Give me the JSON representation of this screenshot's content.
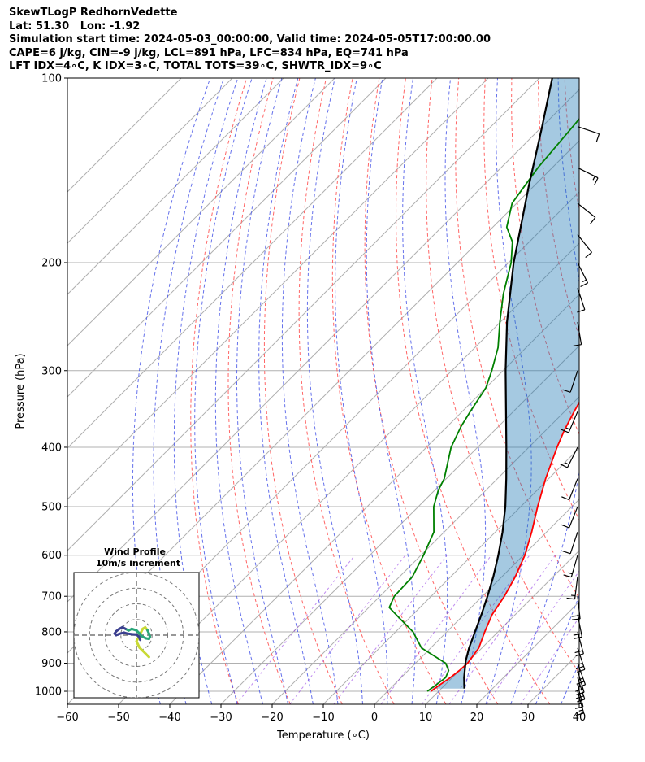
{
  "header": {
    "line1": "SkewTLogP RedhornVedette",
    "line2": "Lat: 51.30   Lon: -1.92",
    "line3": "Simulation start time: 2024-05-03_00:00:00, Valid time: 2024-05-05T17:00:00.00",
    "line4": "CAPE=6 j/kg, CIN=-9 j/kg, LCL=891 hPa, LFC=834 hPa, EQ=741 hPa",
    "line5": "LFT IDX=4∘C, K IDX=3∘C, TOTAL TOTS=39∘C, SHWTR_IDX=9∘C"
  },
  "chart_data": {
    "type": "skewt",
    "xlabel": "Temperature (∘C)",
    "ylabel": "Pressure (hPa)",
    "xlim": [
      -60,
      40
    ],
    "ylim": [
      1050,
      100
    ],
    "x_ticks": [
      -60,
      -50,
      -40,
      -30,
      -20,
      -10,
      0,
      10,
      20,
      30,
      40
    ],
    "x_tick_labels": [
      "−60",
      "−50",
      "−40",
      "−30",
      "−20",
      "−10",
      "0",
      "10",
      "20",
      "30",
      "40"
    ],
    "p_ticks": [
      1000,
      900,
      800,
      700,
      600,
      500,
      400,
      300,
      200,
      100
    ],
    "grid": true,
    "series": [
      {
        "key": "temperature",
        "color": "#ff0000",
        "points": [
          [
            1000,
            8.5
          ],
          [
            975,
            9.0
          ],
          [
            950,
            9.6
          ],
          [
            925,
            10.0
          ],
          [
            900,
            10.2
          ],
          [
            850,
            9.4
          ],
          [
            800,
            7.4
          ],
          [
            750,
            5.5
          ],
          [
            700,
            4.3
          ],
          [
            650,
            2.6
          ],
          [
            600,
            0.3
          ],
          [
            550,
            -2.9
          ],
          [
            500,
            -6.7
          ],
          [
            450,
            -10.6
          ],
          [
            400,
            -14.5
          ],
          [
            375,
            -16.4
          ],
          [
            350,
            -18.1
          ],
          [
            325,
            -19.8
          ],
          [
            300,
            -23.0
          ],
          [
            275,
            -26.6
          ],
          [
            250,
            -30.6
          ],
          [
            225,
            -33.9
          ],
          [
            200,
            -37.5
          ],
          [
            180,
            -40.5
          ],
          [
            160,
            -44.5
          ],
          [
            140,
            -49.5
          ],
          [
            120,
            -57.0
          ],
          [
            100,
            -67.0
          ]
        ]
      },
      {
        "key": "dewpoint",
        "color": "#008000",
        "points": [
          [
            1000,
            7.8
          ],
          [
            975,
            8.3
          ],
          [
            950,
            8.7
          ],
          [
            925,
            7.9
          ],
          [
            900,
            5.9
          ],
          [
            850,
            -1.8
          ],
          [
            800,
            -6.6
          ],
          [
            760,
            -11.9
          ],
          [
            730,
            -16.0
          ],
          [
            700,
            -17.2
          ],
          [
            650,
            -17.5
          ],
          [
            600,
            -19.5
          ],
          [
            550,
            -22.0
          ],
          [
            500,
            -27.0
          ],
          [
            470,
            -29.3
          ],
          [
            450,
            -30.4
          ],
          [
            400,
            -35.2
          ],
          [
            370,
            -37.3
          ],
          [
            350,
            -38.4
          ],
          [
            320,
            -40.0
          ],
          [
            300,
            -42.2
          ],
          [
            275,
            -45.5
          ],
          [
            250,
            -50.1
          ],
          [
            225,
            -54.9
          ],
          [
            200,
            -59.5
          ],
          [
            185,
            -63.3
          ],
          [
            175,
            -67.3
          ],
          [
            160,
            -70.9
          ],
          [
            140,
            -72.8
          ],
          [
            120,
            -74.0
          ],
          [
            100,
            -75.5
          ]
        ]
      },
      {
        "key": "parcel",
        "color": "#000000",
        "points": [
          [
            990,
            14.5
          ],
          [
            950,
            12.3
          ],
          [
            920,
            10.8
          ],
          [
            891,
            9.3
          ],
          [
            850,
            7.5
          ],
          [
            800,
            5.5
          ],
          [
            750,
            3.4
          ],
          [
            700,
            1.0
          ],
          [
            650,
            -1.7
          ],
          [
            600,
            -4.9
          ],
          [
            550,
            -8.6
          ],
          [
            500,
            -13.0
          ],
          [
            450,
            -18.3
          ],
          [
            400,
            -24.4
          ],
          [
            350,
            -31.4
          ],
          [
            300,
            -39.5
          ],
          [
            250,
            -48.7
          ],
          [
            200,
            -59.0
          ],
          [
            150,
            -71.0
          ],
          [
            120,
            -80.0
          ],
          [
            100,
            -87.5
          ]
        ]
      }
    ],
    "cape_fill": {
      "color": "#1f77b4",
      "alpha": 0.4
    },
    "wind_barbs": [
      {
        "p": 1000,
        "u": -2,
        "v": 7
      },
      {
        "p": 975,
        "u": -2,
        "v": 8
      },
      {
        "p": 950,
        "u": -3,
        "v": 9
      },
      {
        "p": 925,
        "u": -3,
        "v": 10
      },
      {
        "p": 900,
        "u": -4,
        "v": 11
      },
      {
        "p": 850,
        "u": -4,
        "v": 12
      },
      {
        "p": 800,
        "u": -3,
        "v": 11
      },
      {
        "p": 750,
        "u": -2,
        "v": 10
      },
      {
        "p": 700,
        "u": -1,
        "v": 9
      },
      {
        "p": 650,
        "u": 1,
        "v": 8
      },
      {
        "p": 600,
        "u": 2,
        "v": 7
      },
      {
        "p": 550,
        "u": 2,
        "v": 6
      },
      {
        "p": 500,
        "u": 2,
        "v": 5
      },
      {
        "p": 450,
        "u": 2,
        "v": 5
      },
      {
        "p": 400,
        "u": 3,
        "v": 6
      },
      {
        "p": 350,
        "u": 3,
        "v": 7
      },
      {
        "p": 300,
        "u": 2,
        "v": 6
      },
      {
        "p": 250,
        "u": -1,
        "v": 6
      },
      {
        "p": 220,
        "u": -2,
        "v": 6
      },
      {
        "p": 200,
        "u": -3,
        "v": 6
      },
      {
        "p": 180,
        "u": -4,
        "v": 5
      },
      {
        "p": 160,
        "u": -5,
        "v": 4
      },
      {
        "p": 140,
        "u": -6,
        "v": 3
      },
      {
        "p": 120,
        "u": -6,
        "v": 2
      }
    ],
    "hodograph": {
      "title_line1": "Wind Profile",
      "title_line2": "10m/s increment",
      "ring_step": 10,
      "rings": 4,
      "range": 20,
      "points": [
        [
          4,
          -7
        ],
        [
          3,
          -6
        ],
        [
          2,
          -5
        ],
        [
          1,
          -4
        ],
        [
          0.5,
          -3
        ],
        [
          0,
          -2
        ],
        [
          0.5,
          -1
        ],
        [
          1,
          0
        ],
        [
          1.5,
          1
        ],
        [
          2,
          2
        ],
        [
          2.8,
          2.5
        ],
        [
          3.5,
          1.6
        ],
        [
          4,
          0.5
        ],
        [
          4.3,
          -0.5
        ],
        [
          4,
          -1.2
        ],
        [
          3,
          -1
        ],
        [
          2,
          -0.5
        ],
        [
          1.5,
          -0.2
        ],
        [
          1,
          0.5
        ],
        [
          0,
          1.5
        ],
        [
          -1.5,
          2
        ],
        [
          -2.5,
          1.5
        ],
        [
          -3.5,
          2
        ],
        [
          -4.5,
          2.5
        ],
        [
          -5.5,
          2
        ],
        [
          -6.5,
          1.2
        ],
        [
          -7,
          0.5
        ],
        [
          -6.5,
          0
        ],
        [
          -5.5,
          0.4
        ],
        [
          -4,
          0.8
        ],
        [
          -3,
          0.5
        ],
        [
          -1.5,
          0.3
        ],
        [
          0,
          0.2
        ],
        [
          0.8,
          -0.5
        ],
        [
          1.2,
          -1.5
        ]
      ]
    }
  }
}
